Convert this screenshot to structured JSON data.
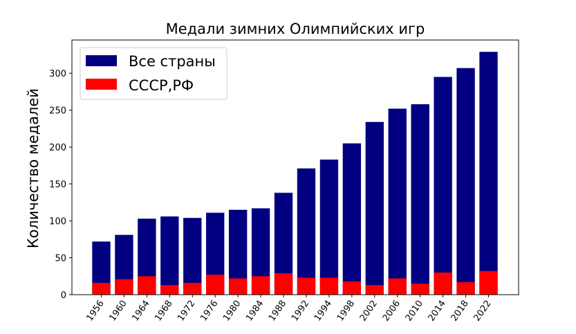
{
  "chart_data": {
    "type": "bar",
    "title": "Медали зимних Олимпийских игр",
    "xlabel": "",
    "ylabel": "Количество медалей",
    "categories": [
      "1956",
      "1960",
      "1964",
      "1968",
      "1972",
      "1976",
      "1980",
      "1984",
      "1988",
      "1992",
      "1994",
      "1998",
      "2002",
      "2006",
      "2010",
      "2014",
      "2018",
      "2022"
    ],
    "series": [
      {
        "name": "Все страны",
        "color": "#000080",
        "values": [
          72,
          81,
          103,
          106,
          104,
          111,
          115,
          117,
          138,
          171,
          183,
          205,
          234,
          252,
          258,
          295,
          307,
          329
        ]
      },
      {
        "name": "СССР,РФ",
        "color": "#ff0000",
        "values": [
          16,
          21,
          25,
          13,
          16,
          27,
          22,
          25,
          29,
          23,
          23,
          18,
          13,
          22,
          15,
          30,
          17,
          32
        ]
      }
    ],
    "ylim": [
      0,
      345
    ],
    "yticks": [
      0,
      50,
      100,
      150,
      200,
      250,
      300
    ],
    "legend_position": "top-left",
    "grid": false
  }
}
